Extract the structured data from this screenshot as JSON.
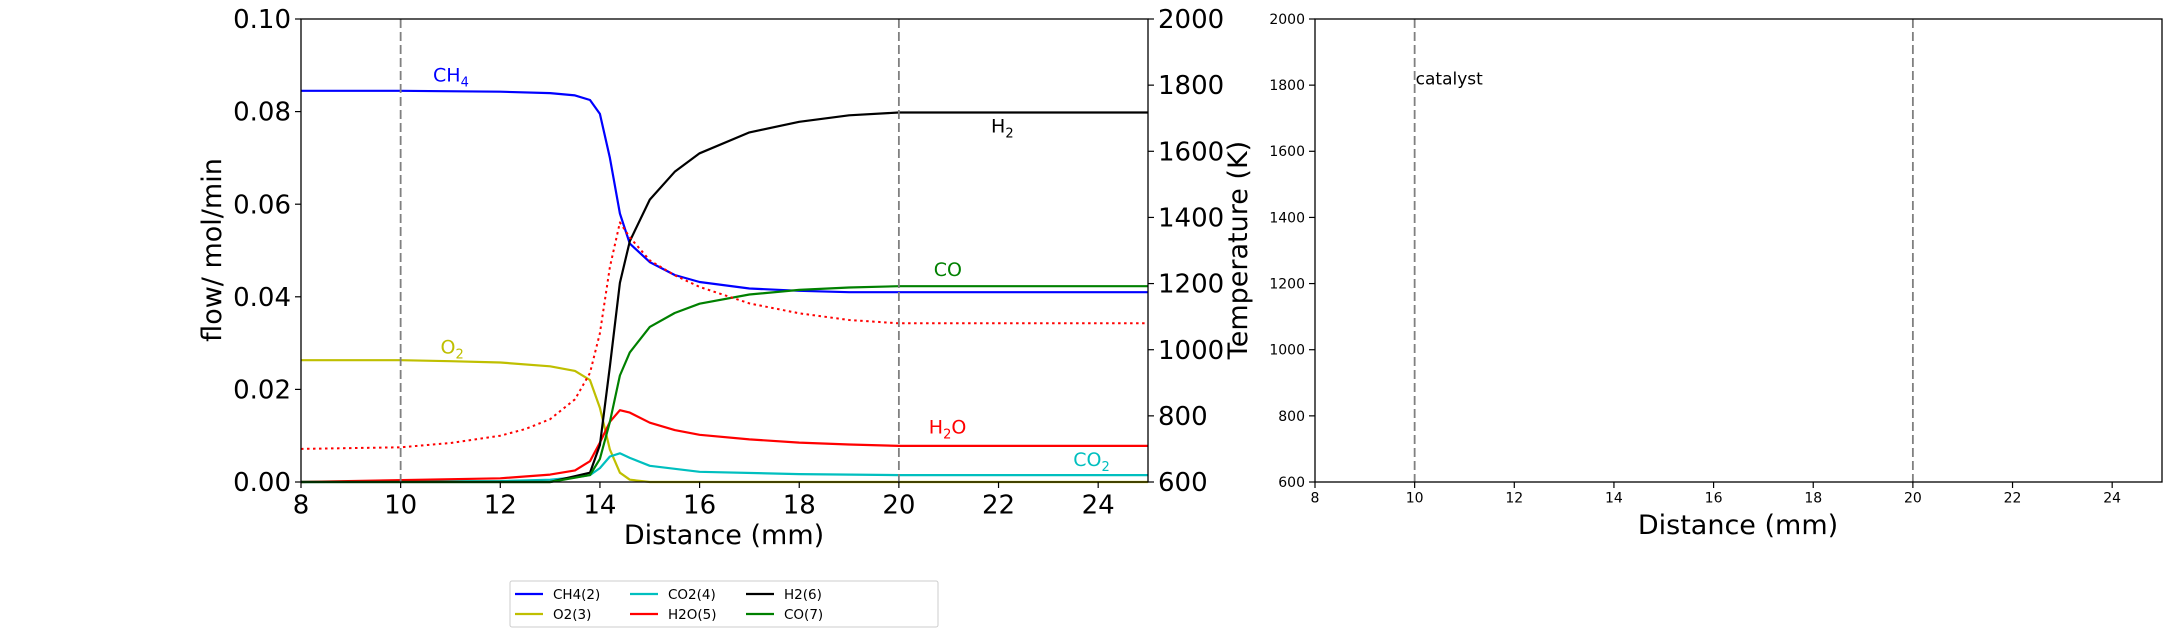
{
  "chart_data": [
    {
      "type": "line",
      "xlabel": "Distance (mm)",
      "ylabel": "flow/ mol/min",
      "y2label": "Temperature (K)",
      "xlim": [
        8,
        25
      ],
      "ylim": [
        0,
        0.1
      ],
      "y2lim": [
        600,
        2000
      ],
      "xticks": [
        "8",
        "10",
        "12",
        "14",
        "16",
        "18",
        "20",
        "22",
        "24"
      ],
      "yticks": [
        "0.00",
        "0.02",
        "0.04",
        "0.06",
        "0.08",
        "0.10"
      ],
      "y2ticks": [
        "600",
        "800",
        "1000",
        "1200",
        "1400",
        "1600",
        "1800",
        "2000"
      ],
      "vlines": [
        10,
        20
      ],
      "series": [
        {
          "name": "CH4(2)",
          "color": "#0000ff",
          "x": [
            8,
            10,
            12,
            13,
            13.5,
            13.8,
            14,
            14.2,
            14.4,
            14.6,
            15,
            15.5,
            16,
            17,
            18,
            19,
            20,
            25
          ],
          "y": [
            0.0845,
            0.0845,
            0.0843,
            0.084,
            0.0835,
            0.0825,
            0.0795,
            0.07,
            0.058,
            0.0515,
            0.0475,
            0.0447,
            0.0432,
            0.0418,
            0.0413,
            0.041,
            0.041,
            0.041
          ]
        },
        {
          "name": "O2(3)",
          "color": "#bfbf00",
          "x": [
            8,
            10,
            11,
            12,
            13,
            13.5,
            13.8,
            14,
            14.2,
            14.4,
            14.6,
            15,
            25
          ],
          "y": [
            0.0263,
            0.0263,
            0.0261,
            0.0258,
            0.025,
            0.024,
            0.022,
            0.016,
            0.007,
            0.002,
            0.0005,
            0,
            0
          ]
        },
        {
          "name": "CO2(4)",
          "color": "#00bfbf",
          "x": [
            8,
            12,
            13,
            13.5,
            13.8,
            14,
            14.2,
            14.4,
            14.6,
            15,
            16,
            18,
            20,
            25
          ],
          "y": [
            0,
            0.0002,
            0.0005,
            0.001,
            0.0015,
            0.003,
            0.0055,
            0.0062,
            0.0052,
            0.0035,
            0.0022,
            0.0017,
            0.0015,
            0.0015
          ]
        },
        {
          "name": "H2O(5)",
          "color": "#ff0000",
          "x": [
            8,
            12,
            13,
            13.5,
            13.8,
            14,
            14.2,
            14.4,
            14.6,
            15,
            15.5,
            16,
            17,
            18,
            19,
            20,
            25
          ],
          "y": [
            0,
            0.0008,
            0.0016,
            0.0025,
            0.0045,
            0.0085,
            0.013,
            0.0155,
            0.015,
            0.0128,
            0.0112,
            0.0102,
            0.0092,
            0.0085,
            0.0081,
            0.0078,
            0.0078
          ]
        },
        {
          "name": "H2(6)",
          "color": "#000000",
          "x": [
            8,
            13,
            13.8,
            14,
            14.2,
            14.4,
            14.6,
            15,
            15.5,
            16,
            17,
            18,
            19,
            20,
            25
          ],
          "y": [
            0,
            0,
            0.002,
            0.008,
            0.025,
            0.043,
            0.052,
            0.061,
            0.067,
            0.071,
            0.0755,
            0.0778,
            0.0792,
            0.0798,
            0.0798
          ]
        },
        {
          "name": "CO(7)",
          "color": "#008000",
          "x": [
            8,
            13,
            13.8,
            14,
            14.2,
            14.4,
            14.6,
            15,
            15.5,
            16,
            17,
            18,
            19,
            20,
            25
          ],
          "y": [
            0,
            0,
            0.0015,
            0.005,
            0.013,
            0.023,
            0.028,
            0.0335,
            0.0365,
            0.0385,
            0.0405,
            0.0415,
            0.042,
            0.0423,
            0.0423
          ]
        },
        {
          "name": "Temperature",
          "color": "#ff0000",
          "dashed": true,
          "axis": "y2",
          "x": [
            8,
            10,
            11,
            12,
            12.5,
            13,
            13.5,
            13.8,
            14,
            14.2,
            14.4,
            14.6,
            15,
            15.5,
            16,
            17,
            18,
            19,
            20,
            25
          ],
          "y": [
            700,
            705,
            718,
            740,
            760,
            790,
            850,
            930,
            1050,
            1250,
            1385,
            1340,
            1270,
            1225,
            1190,
            1140,
            1110,
            1090,
            1080,
            1080
          ]
        }
      ],
      "annotations": [
        {
          "base": "CH",
          "sub": "4",
          "x": 10.65,
          "y": 0.0865,
          "color": "#0000ff"
        },
        {
          "base": "H",
          "sub": "2",
          "x": 21.85,
          "y": 0.0755,
          "color": "#000000"
        },
        {
          "base": "CO",
          "sub": "",
          "x": 20.7,
          "y": 0.0445,
          "color": "#008000"
        },
        {
          "base": "O",
          "sub": "2",
          "x": 10.8,
          "y": 0.0277,
          "color": "#bfbf00"
        },
        {
          "base": "H",
          "sub": "2",
          "tail": "O",
          "x": 20.6,
          "y": 0.0105,
          "color": "#ff0000"
        },
        {
          "base": "CO",
          "sub": "2",
          "x": 23.5,
          "y": 0.0035,
          "color": "#00bfbf"
        }
      ]
    },
    {
      "type": "line",
      "xlabel": "Distance (mm)",
      "xlim": [
        8,
        25
      ],
      "ylim": [
        600,
        2000
      ],
      "xticks": [
        "8",
        "10",
        "12",
        "14",
        "16",
        "18",
        "20",
        "22",
        "24"
      ],
      "yticks": [
        "600",
        "800",
        "1000",
        "1200",
        "1400",
        "1600",
        "1800",
        "2000"
      ],
      "vlines": [
        10,
        20
      ],
      "annotation": {
        "text": "catalyst",
        "x": 10,
        "y": 1820
      }
    }
  ],
  "legend": {
    "entries": [
      {
        "label": "CH4(2)",
        "color": "#0000ff"
      },
      {
        "label": "O2(3)",
        "color": "#bfbf00"
      },
      {
        "label": "CO2(4)",
        "color": "#00bfbf"
      },
      {
        "label": "H2O(5)",
        "color": "#ff0000"
      },
      {
        "label": "H2(6)",
        "color": "#000000"
      },
      {
        "label": "CO(7)",
        "color": "#008000"
      }
    ]
  }
}
